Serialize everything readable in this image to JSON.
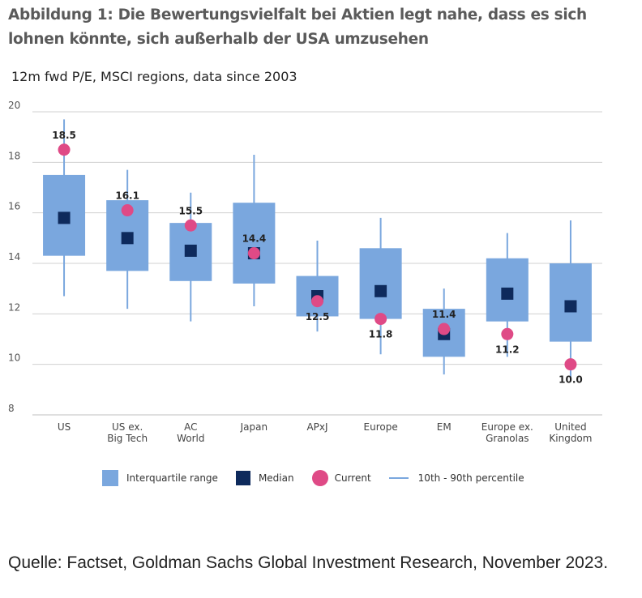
{
  "title": "Abbildung 1: Die Bewertungsvielfalt bei Aktien legt nahe, dass es sich lohnen könnte, sich außerhalb der USA umzusehen",
  "source": "Quelle: Factset, Goldman Sachs Global Investment Research, November 2023.",
  "legend": {
    "iqr": "Interquartile range",
    "median": "Median",
    "current": "Current",
    "pct": "10th - 90th percentile"
  },
  "colors": {
    "box": "#7aa7de",
    "median": "#0e2a5c",
    "current": "#df4a86",
    "grid": "#d0d0d0"
  },
  "chart_data": {
    "type": "box",
    "title": "12m fwd P/E, MSCI regions, data since 2003",
    "xlabel": "",
    "ylabel": "",
    "ylim": [
      8,
      20
    ],
    "yticks": [
      8,
      10,
      12,
      14,
      16,
      18,
      20
    ],
    "categories": [
      [
        "US"
      ],
      [
        "US ex.",
        "Big Tech"
      ],
      [
        "AC",
        "World"
      ],
      [
        "Japan"
      ],
      [
        "APxJ"
      ],
      [
        "Europe"
      ],
      [
        "EM"
      ],
      [
        "Europe ex.",
        "Granolas"
      ],
      [
        "United",
        "Kingdom"
      ]
    ],
    "p10": [
      12.7,
      12.2,
      11.7,
      12.3,
      11.3,
      10.4,
      9.6,
      10.3,
      9.4
    ],
    "q1": [
      14.3,
      13.7,
      13.3,
      13.2,
      11.9,
      11.8,
      10.3,
      11.7,
      10.9
    ],
    "median": [
      15.8,
      15.0,
      14.5,
      14.4,
      12.7,
      12.9,
      11.2,
      12.8,
      12.3
    ],
    "q3": [
      17.5,
      16.5,
      15.6,
      16.4,
      13.5,
      14.6,
      12.2,
      14.2,
      14.0
    ],
    "p90": [
      19.7,
      17.7,
      16.8,
      18.3,
      14.9,
      15.8,
      13.0,
      15.2,
      15.7
    ],
    "current": [
      18.5,
      16.1,
      15.5,
      14.4,
      12.5,
      11.8,
      11.4,
      11.2,
      10.0
    ],
    "current_labels": [
      "18.5",
      "16.1",
      "15.5",
      "14.4",
      "12.5",
      "11.8",
      "11.4",
      "11.2",
      "10.0"
    ],
    "label_position": [
      "above",
      "above",
      "above",
      "above",
      "below",
      "below",
      "above",
      "below",
      "below"
    ]
  }
}
